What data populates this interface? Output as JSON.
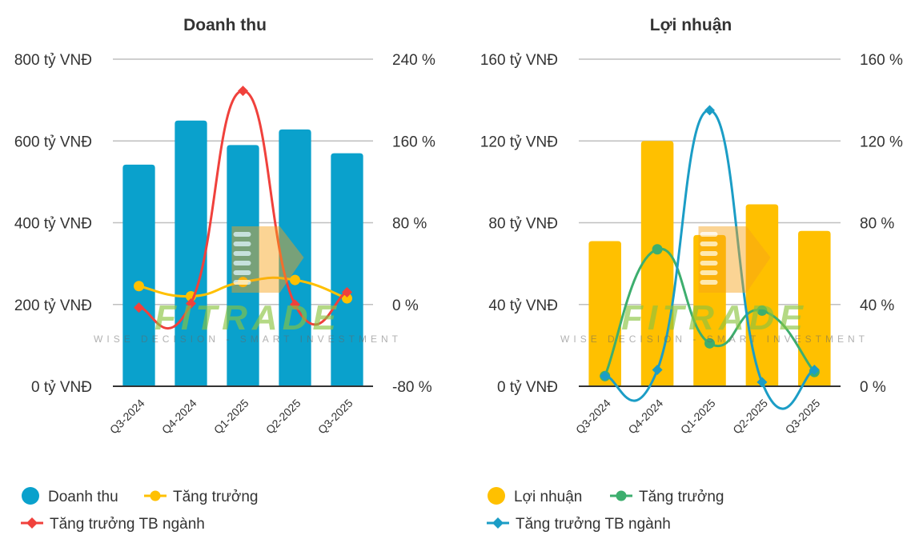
{
  "chart_data": [
    {
      "type": "bar",
      "title": "Doanh thu",
      "categories": [
        "Q3-2024",
        "Q4-2024",
        "Q1-2025",
        "Q2-2025",
        "Q3-2025"
      ],
      "ylim": [
        0,
        800
      ],
      "y2lim": [
        -80,
        240
      ],
      "y_ticks": [
        "0 tỷ VNĐ",
        "200 tỷ VNĐ",
        "400 tỷ VNĐ",
        "600 tỷ VNĐ",
        "800 tỷ VNĐ"
      ],
      "y2_ticks": [
        "-80 %",
        "0 %",
        "80 %",
        "160 %",
        "240 %"
      ],
      "bar_color": "#0aa1cc",
      "series": [
        {
          "name": "Doanh thu",
          "kind": "bar",
          "axis": "left",
          "color": "#0aa1cc",
          "values": [
            542,
            650,
            590,
            628,
            570
          ]
        },
        {
          "name": "Tăng trưởng",
          "kind": "line",
          "marker": "circle",
          "axis": "right",
          "color": "#ffc000",
          "values": [
            18,
            8,
            22,
            24,
            6
          ]
        },
        {
          "name": "Tăng trưởng TB ngành",
          "kind": "line",
          "marker": "diamond",
          "axis": "right",
          "color": "#f0413c",
          "values": [
            -3,
            1,
            209,
            0,
            12
          ]
        }
      ]
    },
    {
      "type": "bar",
      "title": "Lợi nhuận",
      "categories": [
        "Q3-2024",
        "Q4-2024",
        "Q1-2025",
        "Q2-2025",
        "Q3-2025"
      ],
      "ylim": [
        0,
        160
      ],
      "y2lim": [
        0,
        160
      ],
      "y_ticks": [
        "0 tỷ VNĐ",
        "40 tỷ VNĐ",
        "80 tỷ VNĐ",
        "120 tỷ VNĐ",
        "160 tỷ VNĐ"
      ],
      "y2_ticks": [
        "0 %",
        "40 %",
        "80 %",
        "120 %",
        "160 %"
      ],
      "bar_color": "#ffc000",
      "series": [
        {
          "name": "Lợi nhuận",
          "kind": "bar",
          "axis": "left",
          "color": "#ffc000",
          "values": [
            71,
            120,
            74,
            89,
            76
          ]
        },
        {
          "name": "Tăng trưởng",
          "kind": "line",
          "marker": "circle",
          "axis": "right",
          "color": "#3dae6e",
          "values": [
            5,
            67,
            21,
            37,
            7
          ]
        },
        {
          "name": "Tăng trưởng TB ngành",
          "kind": "line",
          "marker": "diamond",
          "axis": "right",
          "color": "#1b9dc6",
          "values": [
            5,
            8,
            135,
            2,
            8
          ]
        }
      ]
    }
  ],
  "watermark": {
    "text": "FITRADE",
    "tagline": "WISE DECISION - SMART INVESTMENT",
    "green": "#8ac43f",
    "orange": "#f6a21a"
  }
}
